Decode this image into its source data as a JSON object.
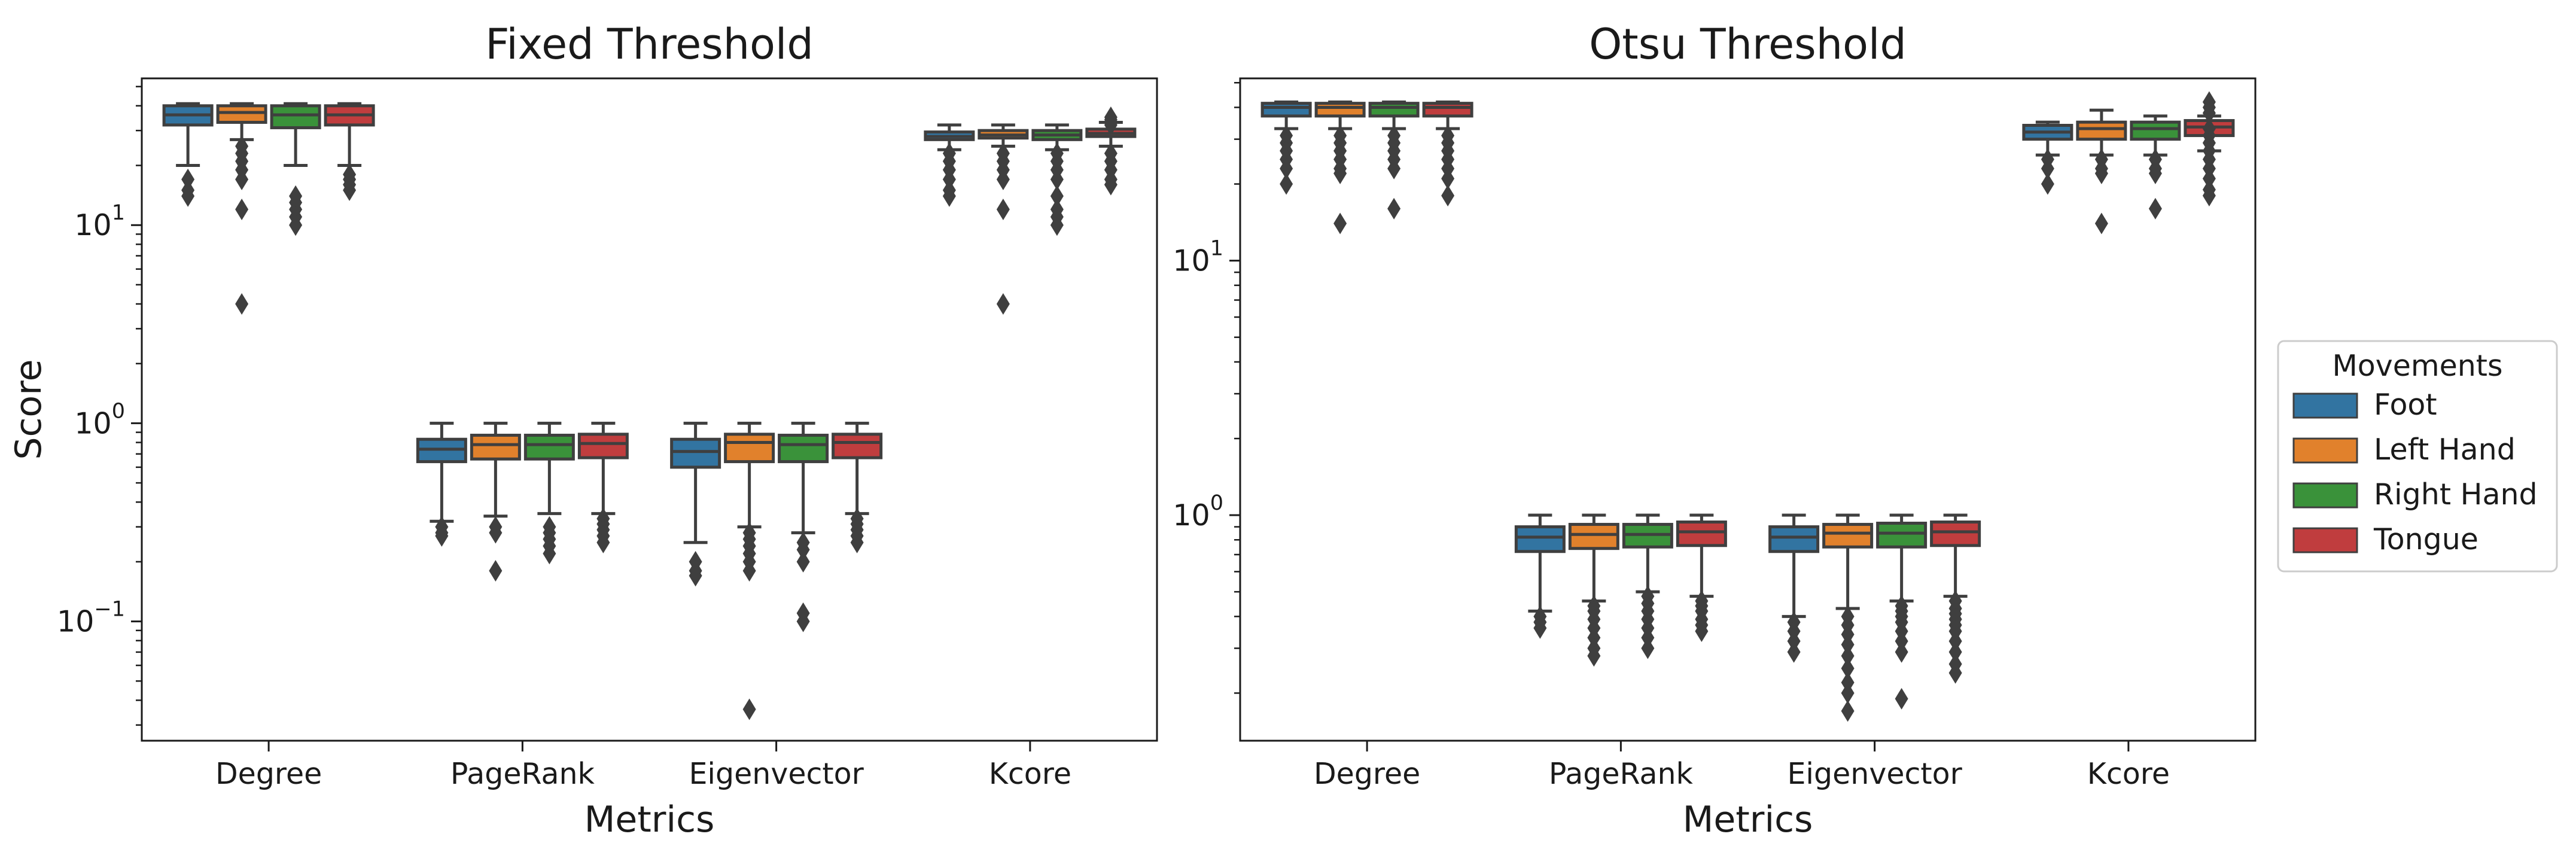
{
  "colors": {
    "Foot": "#3274a1",
    "Left Hand": "#e1812c",
    "Right Hand": "#3a923a",
    "Tongue": "#c03d3e",
    "line": "#3f3f3f"
  },
  "legend": {
    "title": "Movements",
    "entries": [
      "Foot",
      "Left Hand",
      "Right Hand",
      "Tongue"
    ],
    "placement": "outside-right"
  },
  "chart_data": [
    {
      "type": "box",
      "title": "Fixed Threshold",
      "xlabel": "Metrics",
      "ylabel": "Score",
      "yscale": "log",
      "ylim": [
        0.025,
        55
      ],
      "yticks": [
        {
          "value": 0.1,
          "base": "10",
          "exp": "−1"
        },
        {
          "value": 1,
          "base": "10",
          "exp": "0"
        },
        {
          "value": 10,
          "base": "10",
          "exp": "1"
        }
      ],
      "categories": [
        "Degree",
        "PageRank",
        "Eigenvector",
        "Kcore"
      ],
      "series": [
        {
          "name": "Foot",
          "boxes": [
            {
              "q1": 32,
              "med": 36,
              "q3": 40,
              "wlo": 20,
              "whi": 41,
              "fliers": [
                17,
                15,
                14
              ]
            },
            {
              "q1": 0.64,
              "med": 0.74,
              "q3": 0.83,
              "wlo": 0.32,
              "whi": 1.0,
              "fliers": [
                0.3,
                0.28,
                0.27
              ]
            },
            {
              "q1": 0.6,
              "med": 0.72,
              "q3": 0.83,
              "wlo": 0.25,
              "whi": 1.0,
              "fliers": [
                0.2,
                0.18,
                0.17
              ]
            },
            {
              "q1": 27,
              "med": 28,
              "q3": 29.5,
              "wlo": 24,
              "whi": 32,
              "fliers": [
                23,
                21,
                19,
                17,
                15,
                14
              ]
            }
          ]
        },
        {
          "name": "Left Hand",
          "boxes": [
            {
              "q1": 33,
              "med": 37,
              "q3": 40,
              "wlo": 27,
              "whi": 41,
              "fliers": [
                25,
                23,
                21,
                19,
                17,
                12,
                4
              ]
            },
            {
              "q1": 0.66,
              "med": 0.78,
              "q3": 0.87,
              "wlo": 0.34,
              "whi": 1.0,
              "fliers": [
                0.3,
                0.28,
                0.18
              ]
            },
            {
              "q1": 0.64,
              "med": 0.8,
              "q3": 0.88,
              "wlo": 0.3,
              "whi": 1.0,
              "fliers": [
                0.28,
                0.26,
                0.24,
                0.22,
                0.2,
                0.18,
                0.036
              ]
            },
            {
              "q1": 27.5,
              "med": 28.5,
              "q3": 30,
              "wlo": 25,
              "whi": 32,
              "fliers": [
                23,
                21,
                19,
                17,
                12,
                4
              ]
            }
          ]
        },
        {
          "name": "Right Hand",
          "boxes": [
            {
              "q1": 31,
              "med": 36,
              "q3": 40,
              "wlo": 20,
              "whi": 41,
              "fliers": [
                14,
                13,
                12,
                11,
                10
              ]
            },
            {
              "q1": 0.66,
              "med": 0.78,
              "q3": 0.87,
              "wlo": 0.35,
              "whi": 1.0,
              "fliers": [
                0.3,
                0.28,
                0.26,
                0.24,
                0.22
              ]
            },
            {
              "q1": 0.64,
              "med": 0.78,
              "q3": 0.87,
              "wlo": 0.28,
              "whi": 1.0,
              "fliers": [
                0.25,
                0.23,
                0.2,
                0.11,
                0.1
              ]
            },
            {
              "q1": 27,
              "med": 28.5,
              "q3": 30,
              "wlo": 24,
              "whi": 32,
              "fliers": [
                23,
                21,
                19,
                17,
                14,
                12,
                11,
                10
              ]
            }
          ]
        },
        {
          "name": "Tongue",
          "boxes": [
            {
              "q1": 32,
              "med": 36,
              "q3": 40,
              "wlo": 20,
              "whi": 41,
              "fliers": [
                18,
                17,
                16,
                15
              ]
            },
            {
              "q1": 0.67,
              "med": 0.79,
              "q3": 0.88,
              "wlo": 0.35,
              "whi": 1.0,
              "fliers": [
                0.33,
                0.31,
                0.29,
                0.27,
                0.25
              ]
            },
            {
              "q1": 0.67,
              "med": 0.8,
              "q3": 0.88,
              "wlo": 0.35,
              "whi": 1.0,
              "fliers": [
                0.33,
                0.31,
                0.29,
                0.27,
                0.25
              ]
            },
            {
              "q1": 28,
              "med": 29,
              "q3": 30.5,
              "wlo": 25,
              "whi": 33,
              "fliers": [
                35,
                34,
                32,
                23,
                21,
                19,
                17,
                16
              ]
            }
          ]
        }
      ]
    },
    {
      "type": "box",
      "title": "Otsu Threshold",
      "xlabel": "Metrics",
      "ylabel": "",
      "yscale": "log",
      "ylim": [
        0.13,
        52
      ],
      "yticks": [
        {
          "value": 1,
          "base": "10",
          "exp": "0"
        },
        {
          "value": 10,
          "base": "10",
          "exp": "1"
        }
      ],
      "categories": [
        "Degree",
        "PageRank",
        "Eigenvector",
        "Kcore"
      ],
      "series": [
        {
          "name": "Foot",
          "boxes": [
            {
              "q1": 37,
              "med": 40,
              "q3": 41.5,
              "wlo": 33,
              "whi": 42,
              "fliers": [
                31,
                29,
                27,
                25,
                23,
                20
              ]
            },
            {
              "q1": 0.72,
              "med": 0.82,
              "q3": 0.9,
              "wlo": 0.42,
              "whi": 1.0,
              "fliers": [
                0.4,
                0.38,
                0.36
              ]
            },
            {
              "q1": 0.72,
              "med": 0.82,
              "q3": 0.9,
              "wlo": 0.4,
              "whi": 1.0,
              "fliers": [
                0.38,
                0.35,
                0.32,
                0.29
              ]
            },
            {
              "q1": 30,
              "med": 32,
              "q3": 34,
              "wlo": 26,
              "whi": 35,
              "fliers": [
                25,
                23,
                20
              ]
            }
          ]
        },
        {
          "name": "Left Hand",
          "boxes": [
            {
              "q1": 37,
              "med": 40,
              "q3": 41.5,
              "wlo": 33,
              "whi": 42,
              "fliers": [
                31,
                29,
                27,
                25,
                23,
                22,
                14
              ]
            },
            {
              "q1": 0.74,
              "med": 0.84,
              "q3": 0.92,
              "wlo": 0.46,
              "whi": 1.0,
              "fliers": [
                0.44,
                0.42,
                0.39,
                0.36,
                0.33,
                0.3,
                0.28
              ]
            },
            {
              "q1": 0.75,
              "med": 0.85,
              "q3": 0.92,
              "wlo": 0.43,
              "whi": 1.0,
              "fliers": [
                0.4,
                0.37,
                0.34,
                0.31,
                0.28,
                0.25,
                0.22,
                0.2,
                0.17
              ]
            },
            {
              "q1": 30,
              "med": 33,
              "q3": 35,
              "wlo": 26,
              "whi": 39,
              "fliers": [
                25,
                23,
                22,
                14
              ]
            }
          ]
        },
        {
          "name": "Right Hand",
          "boxes": [
            {
              "q1": 37,
              "med": 40,
              "q3": 41.5,
              "wlo": 33,
              "whi": 42,
              "fliers": [
                31,
                29,
                27,
                25,
                23,
                16
              ]
            },
            {
              "q1": 0.75,
              "med": 0.84,
              "q3": 0.92,
              "wlo": 0.5,
              "whi": 1.0,
              "fliers": [
                0.48,
                0.45,
                0.42,
                0.39,
                0.36,
                0.33,
                0.3
              ]
            },
            {
              "q1": 0.75,
              "med": 0.85,
              "q3": 0.93,
              "wlo": 0.46,
              "whi": 1.0,
              "fliers": [
                0.44,
                0.42,
                0.4,
                0.38,
                0.35,
                0.32,
                0.29,
                0.19
              ]
            },
            {
              "q1": 30,
              "med": 33,
              "q3": 35,
              "wlo": 26,
              "whi": 37,
              "fliers": [
                25,
                23,
                22,
                16
              ]
            }
          ]
        },
        {
          "name": "Tongue",
          "boxes": [
            {
              "q1": 37,
              "med": 40,
              "q3": 41.5,
              "wlo": 33,
              "whi": 42,
              "fliers": [
                31,
                29,
                27,
                25,
                23,
                21,
                18
              ]
            },
            {
              "q1": 0.76,
              "med": 0.86,
              "q3": 0.94,
              "wlo": 0.48,
              "whi": 1.0,
              "fliers": [
                0.46,
                0.44,
                0.42,
                0.39,
                0.37,
                0.35
              ]
            },
            {
              "q1": 0.76,
              "med": 0.86,
              "q3": 0.94,
              "wlo": 0.48,
              "whi": 1.0,
              "fliers": [
                0.46,
                0.43,
                0.41,
                0.39,
                0.37,
                0.35,
                0.32,
                0.29,
                0.26,
                0.24
              ]
            },
            {
              "q1": 31,
              "med": 33.5,
              "q3": 35.5,
              "wlo": 27,
              "whi": 37,
              "fliers": [
                42,
                40,
                38,
                33,
                31,
                29,
                27,
                25,
                23,
                21,
                19,
                18
              ]
            }
          ]
        }
      ]
    }
  ]
}
